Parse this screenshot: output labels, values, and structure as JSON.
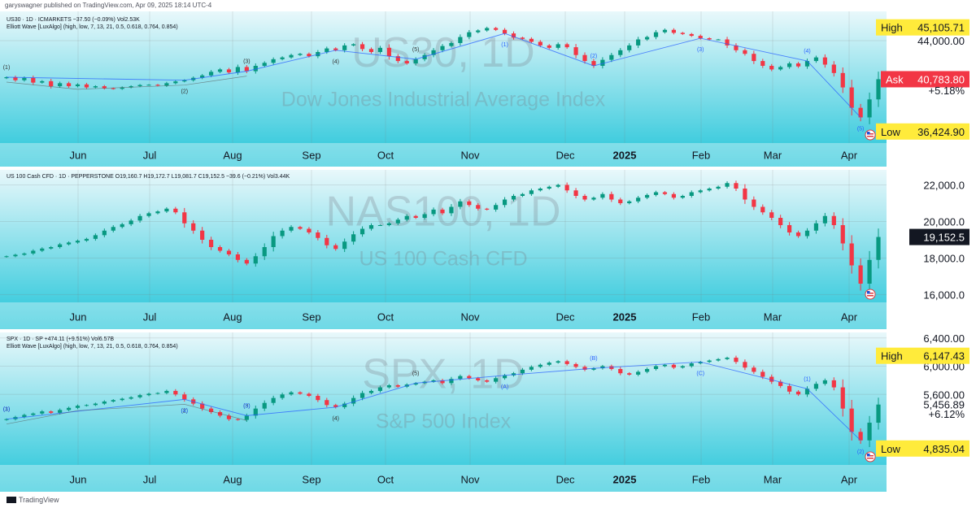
{
  "header": {
    "publisher": "garyswagner published on TradingView.com, Apr 09, 2025 18:14 UTC-4"
  },
  "footer": {
    "brand": "TradingView"
  },
  "x_labels": [
    "Jun",
    "Jul",
    "Aug",
    "Sep",
    "Oct",
    "Nov",
    "Dec",
    "2025",
    "Feb",
    "Mar",
    "Apr"
  ],
  "colors": {
    "up": "#089981",
    "down": "#f23645",
    "bg_top": "#e9f8fb",
    "bg_bottom": "#22c5d9",
    "wave_line": "#2962ff",
    "wave_line2": "#f06292",
    "flag": "#ffeb3b",
    "ask": "#f23645"
  },
  "chart_data": [
    {
      "type": "candlestick",
      "symbol": "US30",
      "interval": "1D",
      "watermark_symbol": "US30, 1D",
      "watermark_name": "Dow Jones Industrial Average Index",
      "legend_line1": "US30 · 1D · ICMARKETS  −37.50 (−0.09%)  Vol2.53K",
      "legend_line2": "Elliott Wave [LuxAlgo] (high, low, 7, 13, 21, 0.5, 0.618, 0.764, 0.854)",
      "y_ticks": [
        "44,000.00"
      ],
      "y_tick_values": [
        44000
      ],
      "ylim": [
        35800,
        46100
      ],
      "flags": [
        {
          "label": "High",
          "value": "45,105.71",
          "style": "yellow",
          "level": 45105.71
        },
        {
          "label": "Ask",
          "value": "40,783.80",
          "style": "red",
          "level": 40783.8
        },
        {
          "label": "",
          "value": "+5.18%",
          "style": "plain",
          "level": 39850
        },
        {
          "label": "Low",
          "value": "36,424.90",
          "style": "yellow",
          "level": 36424.9
        }
      ],
      "closes": [
        40950,
        40700,
        40900,
        40500,
        40620,
        40200,
        40450,
        40200,
        40350,
        40100,
        40200,
        40030,
        39980,
        40100,
        40200,
        40300,
        40320,
        40250,
        40450,
        40600,
        40700,
        40900,
        41100,
        41400,
        41600,
        41350,
        41800,
        41450,
        41900,
        42150,
        42450,
        42600,
        42800,
        42900,
        42700,
        43050,
        43350,
        43200,
        43600,
        43700,
        43300,
        43050,
        43400,
        42700,
        42300,
        42100,
        42450,
        42800,
        43200,
        43550,
        43800,
        44300,
        44700,
        44850,
        45050,
        44900,
        44600,
        44250,
        44150,
        43900,
        43600,
        43400,
        43700,
        43450,
        42800,
        42300,
        41900,
        42400,
        42800,
        43200,
        43600,
        44100,
        44300,
        44700,
        44900,
        44650,
        44550,
        44400,
        44200,
        44100,
        44100,
        43600,
        43200,
        42900,
        42300,
        41900,
        41600,
        41800,
        42100,
        41850,
        42300,
        42600,
        42000,
        41300,
        40100,
        38400,
        37600,
        39100,
        40783.8
      ],
      "wave_labels": [
        "(1)",
        "(2)",
        "(3)",
        "(4)",
        "(5)",
        "(1)",
        "(2)",
        "(3)",
        "(4)",
        "(5)"
      ]
    },
    {
      "type": "candlestick",
      "symbol": "NAS100",
      "interval": "1D",
      "watermark_symbol": "NAS100, 1D",
      "watermark_name": "US 100 Cash CFD",
      "legend_line1": "US 100 Cash CFD · 1D · PEPPERSTONE  O19,160.7  H19,172.7  L19,081.7  C19,152.5  −39.6 (−0.21%)  Vol3.44K",
      "y_ticks": [
        "22,000.0",
        "20,000.0",
        "18,000.0",
        "16,000.0"
      ],
      "y_tick_values": [
        22000,
        20000,
        18000,
        16000
      ],
      "ylim": [
        15800,
        22600
      ],
      "flags": [
        {
          "label": "",
          "value": "19,152.5",
          "style": "dark",
          "level": 19152.5
        }
      ],
      "closes": [
        18100,
        18180,
        18250,
        18400,
        18520,
        18600,
        18750,
        18850,
        18950,
        19050,
        19250,
        19500,
        19700,
        19850,
        20050,
        20300,
        20450,
        20550,
        20700,
        20500,
        19900,
        19500,
        19000,
        18600,
        18400,
        18200,
        17900,
        17700,
        18100,
        18600,
        19200,
        19500,
        19700,
        19600,
        19400,
        19100,
        18700,
        18500,
        18900,
        19300,
        19600,
        19800,
        19800,
        19900,
        20100,
        20300,
        20200,
        20400,
        20650,
        20450,
        20800,
        21100,
        20900,
        20700,
        20650,
        20900,
        21200,
        21400,
        21500,
        21700,
        21800,
        21900,
        22000,
        21700,
        21400,
        21200,
        21300,
        21500,
        21200,
        21000,
        21100,
        21300,
        21450,
        21600,
        21500,
        21300,
        21400,
        21600,
        21700,
        21800,
        21900,
        22100,
        21800,
        21200,
        20800,
        20500,
        20200,
        19800,
        19400,
        19200,
        19500,
        19900,
        20300,
        19800,
        18800,
        17600,
        16600,
        17900,
        19152.5
      ]
    },
    {
      "type": "candlestick",
      "symbol": "SPX",
      "interval": "1D",
      "watermark_symbol": "SPX, 1D",
      "watermark_name": "S&P 500 Index",
      "legend_line1": "SPX · 1D · SP  +474.11 (+9.51%)  Vol6.57B",
      "legend_line2": "Elliott Wave [LuxAlgo] (high, low, 7, 13, 21, 0.5, 0.618, 0.764, 0.854)",
      "y_ticks": [
        "6,400.00",
        "6,000.00",
        "5,600.00"
      ],
      "y_tick_values": [
        6400,
        6000,
        5600
      ],
      "ylim": [
        4660,
        6420
      ],
      "flags": [
        {
          "label": "High",
          "value": "6,147.43",
          "style": "yellow",
          "level": 6147.43
        },
        {
          "label": "",
          "value": "5,456.89",
          "style": "plain",
          "level": 5456.89
        },
        {
          "label": "",
          "value": "+6.12%",
          "style": "plain",
          "level": 5330
        },
        {
          "label": "Low",
          "value": "4,835.04",
          "style": "yellow",
          "level": 4835.04
        }
      ],
      "closes": [
        5250,
        5280,
        5310,
        5330,
        5360,
        5340,
        5380,
        5410,
        5440,
        5450,
        5470,
        5500,
        5520,
        5540,
        5560,
        5590,
        5610,
        5620,
        5650,
        5600,
        5530,
        5470,
        5400,
        5350,
        5300,
        5250,
        5240,
        5300,
        5400,
        5480,
        5550,
        5600,
        5630,
        5610,
        5580,
        5520,
        5450,
        5420,
        5470,
        5550,
        5620,
        5650,
        5700,
        5730,
        5710,
        5740,
        5760,
        5780,
        5800,
        5760,
        5820,
        5860,
        5830,
        5800,
        5780,
        5830,
        5870,
        5900,
        5950,
        5990,
        6020,
        6050,
        6070,
        6030,
        5990,
        5950,
        5970,
        6000,
        5960,
        5900,
        5880,
        5920,
        5960,
        6000,
        6020,
        5980,
        6000,
        6040,
        6060,
        6080,
        6100,
        6120,
        6060,
        5980,
        5920,
        5850,
        5780,
        5720,
        5640,
        5600,
        5680,
        5750,
        5800,
        5700,
        5400,
        5070,
        4950,
        5200,
        5456.89
      ],
      "wave_labels": [
        "(1)",
        "(2)",
        "(3)",
        "(4)",
        "(5)",
        "(A)",
        "(B)",
        "(C)",
        "(1)",
        "(2)",
        "(3)",
        "(4)",
        "(5)"
      ]
    }
  ]
}
